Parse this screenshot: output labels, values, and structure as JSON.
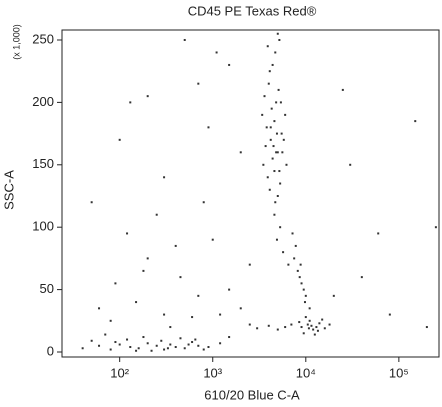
{
  "chart_data": {
    "type": "scatter",
    "title": "CD45 PE Texas Red®",
    "x_label": "610/20 Blue C-A",
    "y_label": "SSC-A",
    "y_unit_note": "(x 1,000)",
    "log_x": true,
    "color": "#333333",
    "xlim": [
      24,
      270000
    ],
    "ylim": [
      -4,
      258
    ],
    "xticks": [
      {
        "value": 100,
        "label": "10²"
      },
      {
        "value": 1000,
        "label": "10³"
      },
      {
        "value": 10000,
        "label": "10⁴"
      },
      {
        "value": 100000,
        "label": "10⁵"
      }
    ],
    "yticks": [
      0,
      50,
      100,
      150,
      200,
      250
    ],
    "x": [
      3500,
      4200,
      5000,
      4600,
      3900,
      5500,
      4800,
      4100,
      5200,
      3700,
      6000,
      4400,
      5100,
      4700,
      3800,
      5600,
      4300,
      4900,
      3600,
      5300,
      4500,
      6200,
      4000,
      5000,
      4600,
      3400,
      5800,
      4200,
      4800,
      5400,
      4100,
      4700,
      5200,
      4400,
      3900,
      5000,
      4600,
      5300,
      4900,
      5700,
      6500,
      7500,
      8200,
      9000,
      8600,
      7800,
      9500,
      10000,
      8800,
      7200,
      9800,
      11000,
      9000,
      10500,
      12000,
      11000,
      13000,
      14000,
      9500,
      16000,
      10000,
      12500,
      11500,
      8500,
      15000,
      18000,
      13500,
      10800,
      7000,
      6000,
      5000,
      4000,
      3000,
      2500,
      40,
      60,
      80,
      100,
      130,
      160,
      200,
      250,
      300,
      350,
      400,
      500,
      600,
      700,
      800,
      120,
      90,
      180,
      220,
      280,
      450,
      550,
      900,
      1200,
      1500,
      70,
      150,
      330,
      650,
      50,
      60,
      90,
      150,
      200,
      300,
      450,
      700,
      1000,
      1500,
      2000,
      120,
      250,
      400,
      800,
      1200,
      80,
      350,
      600,
      180,
      2500,
      100,
      200,
      500,
      900,
      1500,
      300,
      50,
      2000,
      700,
      30000,
      60000,
      150000,
      250000,
      40000,
      80000,
      20000,
      200000,
      130,
      1100,
      25000
    ],
    "values": [
      150,
      170,
      160,
      185,
      140,
      175,
      200,
      130,
      145,
      165,
      190,
      155,
      210,
      120,
      180,
      160,
      195,
      175,
      205,
      135,
      165,
      150,
      215,
      125,
      145,
      190,
      170,
      180,
      160,
      200,
      225,
      240,
      250,
      230,
      245,
      255,
      110,
      100,
      90,
      80,
      70,
      75,
      65,
      55,
      60,
      85,
      50,
      45,
      70,
      95,
      40,
      35,
      20,
      22,
      18,
      25,
      20,
      23,
      15,
      19,
      28,
      14,
      21,
      24,
      26,
      22,
      17,
      19,
      22,
      20,
      18,
      21,
      19,
      22,
      3,
      5,
      2,
      6,
      4,
      3,
      7,
      5,
      2,
      6,
      4,
      3,
      8,
      5,
      2,
      10,
      8,
      12,
      1,
      9,
      11,
      6,
      4,
      7,
      12,
      14,
      1,
      3,
      10,
      9,
      35,
      55,
      40,
      75,
      30,
      60,
      45,
      90,
      50,
      35,
      95,
      110,
      85,
      120,
      30,
      25,
      20,
      28,
      65,
      70,
      170,
      205,
      250,
      180,
      230,
      140,
      120,
      160,
      215,
      150,
      95,
      185,
      100,
      60,
      30,
      45,
      20,
      200,
      240,
      210
    ]
  }
}
